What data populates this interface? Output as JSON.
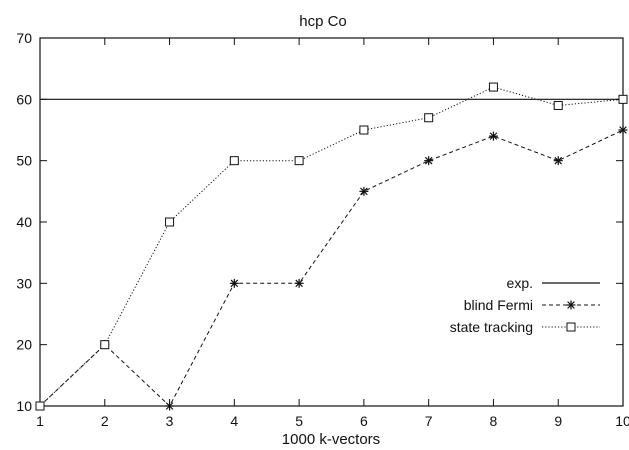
{
  "chart_data": {
    "type": "line",
    "title": "hcp Co",
    "xlabel": "1000 k-vectors",
    "ylabel": "",
    "xlim": [
      1,
      10
    ],
    "ylim": [
      10,
      70
    ],
    "x_ticks": [
      1,
      2,
      3,
      4,
      5,
      6,
      7,
      8,
      9,
      10
    ],
    "y_ticks": [
      10,
      20,
      30,
      40,
      50,
      60,
      70
    ],
    "grid": false,
    "legend_position": "lower-right",
    "series": [
      {
        "name": "exp.",
        "style": "solid",
        "marker": "none",
        "x": [
          1,
          10
        ],
        "values": [
          60,
          60
        ]
      },
      {
        "name": "blind Fermi",
        "style": "dashed",
        "marker": "asterisk",
        "x": [
          1,
          2,
          3,
          4,
          5,
          6,
          7,
          8,
          9,
          10
        ],
        "values": [
          10,
          20,
          10,
          30,
          30,
          45,
          50,
          54,
          50,
          55
        ]
      },
      {
        "name": "state tracking",
        "style": "dotted",
        "marker": "square",
        "x": [
          1,
          2,
          3,
          4,
          5,
          6,
          7,
          8,
          9,
          10
        ],
        "values": [
          10,
          20,
          40,
          50,
          50,
          55,
          57,
          62,
          59,
          60
        ]
      }
    ]
  },
  "colors": {
    "line": "#111111",
    "background": "#ffffff"
  }
}
